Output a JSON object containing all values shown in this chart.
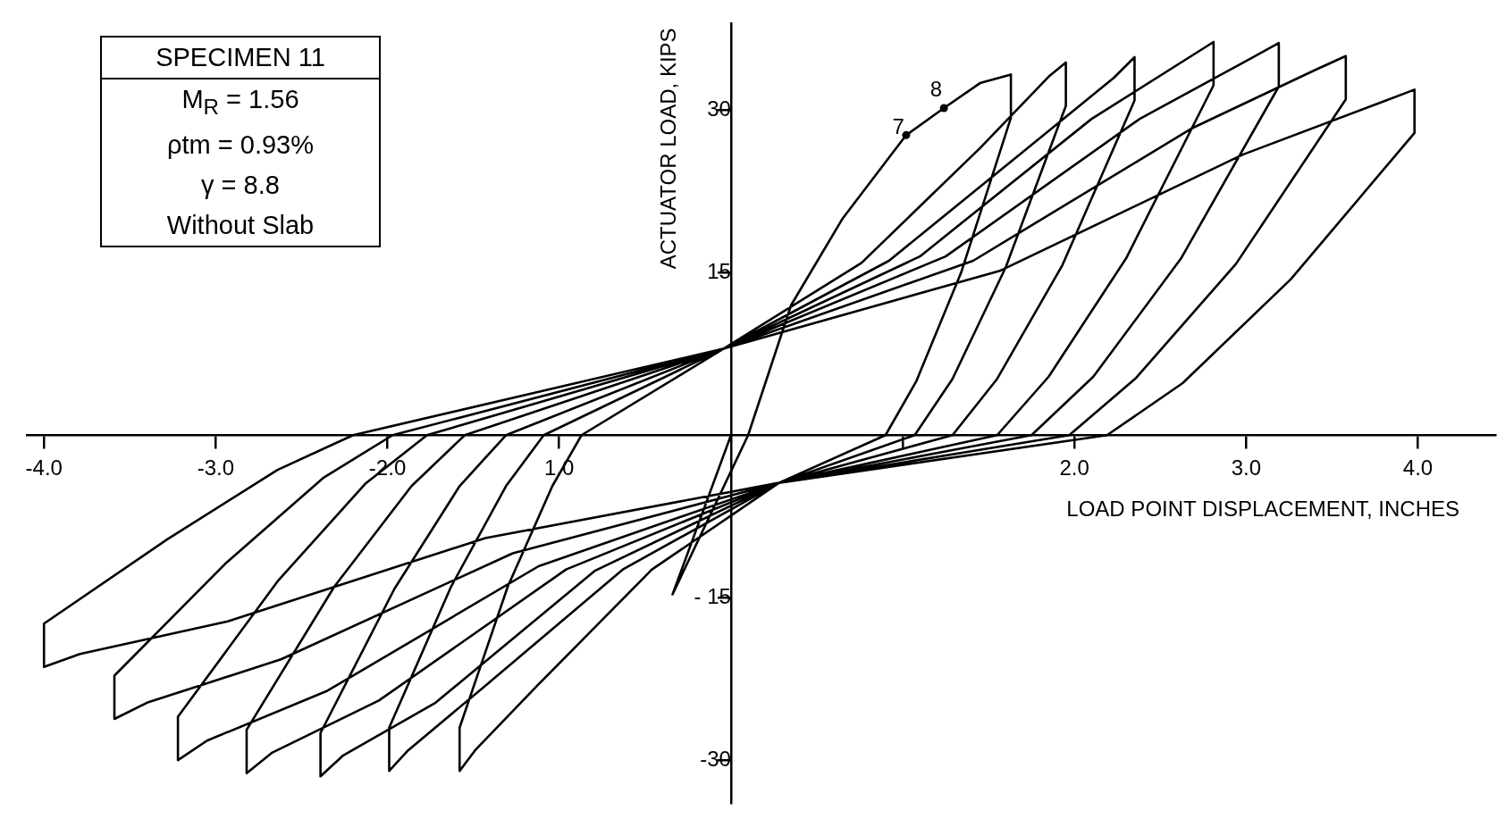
{
  "chart_data": {
    "type": "line",
    "xlabel": "LOAD POINT DISPLACEMENT, INCHES",
    "ylabel": "ACTUATOR LOAD, KIPS",
    "annotations": [
      "SPECIMEN 11",
      "M$_{R}$ = 1.56",
      "ρtm = 0.93%",
      "γ = 8.8",
      "Without Slab",
      {
        "text": "7",
        "x": 1.02,
        "y": 27.7
      },
      {
        "text": "8",
        "x": 1.24,
        "y": 30.2
      }
    ],
    "x": [
      0,
      -0.34,
      0.1,
      0.35,
      0.65,
      1.02,
      1.24,
      1.45,
      1.63,
      1.63,
      1.34,
      1.08,
      0.9,
      0.28,
      -0.46,
      -1.12,
      -1.49,
      -1.58,
      -1.58,
      -1.3,
      -1.04,
      -0.87,
      -0.04,
      0.76,
      1.45,
      1.85,
      1.95,
      1.95,
      1.6,
      1.29,
      1.07,
      0.28,
      -0.63,
      -1.42,
      -1.88,
      -1.99,
      -1.99,
      -1.63,
      -1.31,
      -1.09,
      -0.04,
      0.92,
      1.75,
      2.23,
      2.35,
      2.35,
      1.93,
      1.55,
      1.29,
      0.28,
      -0.79,
      -1.72,
      -2.26,
      -2.39,
      -2.39,
      -1.96,
      -1.58,
      -1.31,
      -0.04,
      1.1,
      2.1,
      2.67,
      2.81,
      2.81,
      2.3,
      1.85,
      1.55,
      0.28,
      -0.96,
      -2.05,
      -2.67,
      -2.82,
      -2.82,
      -2.31,
      -1.86,
      -1.55,
      -0.04,
      1.25,
      2.38,
      3.03,
      3.19,
      3.19,
      2.62,
      2.11,
      1.75,
      0.28,
      -1.12,
      -2.35,
      -3.05,
      -3.22,
      -3.22,
      -2.64,
      -2.13,
      -1.77,
      -0.04,
      1.41,
      2.68,
      3.4,
      3.58,
      3.58,
      2.94,
      2.36,
      1.97,
      0.28,
      -1.27,
      -2.62,
      -3.4,
      -3.59,
      -3.59,
      -2.94,
      -2.37,
      -1.97,
      -0.04,
      1.57,
      2.98,
      3.78,
      3.98,
      3.98,
      3.26,
      2.63,
      2.19,
      0.28,
      -1.43,
      -2.93,
      -3.79,
      -4.0,
      -4.0,
      -3.28,
      -2.64,
      -2.2,
      -0.04
    ],
    "series": [
      {
        "color": "#000000",
        "values": [
          0,
          -14.7,
          0,
          12,
          20,
          27.7,
          30.2,
          32.5,
          33.3,
          29.3,
          15.0,
          5.0,
          0,
          -4.4,
          -12.4,
          -23.0,
          -29.1,
          -31.0,
          -27.0,
          -14.0,
          -4.7,
          0,
          8,
          15.9,
          26.5,
          33.1,
          34.4,
          30.4,
          15.5,
          5.2,
          0,
          -4.4,
          -12.4,
          -23.0,
          -29.1,
          -31.0,
          -27.0,
          -14.0,
          -4.7,
          0,
          8,
          16.1,
          26.8,
          33.0,
          34.9,
          30.9,
          15.7,
          5.2,
          0,
          -4.4,
          -12.5,
          -24.7,
          -29.6,
          -31.5,
          -27.5,
          -14.2,
          -4.7,
          0,
          8,
          16.5,
          29.2,
          34.9,
          36.3,
          32.3,
          16.3,
          5.4,
          0,
          -4.4,
          -12.4,
          -24.5,
          -29.3,
          -31.2,
          -27.2,
          -14.0,
          -4.7,
          0,
          8,
          16.5,
          29.2,
          34.8,
          36.2,
          32.2,
          16.3,
          5.4,
          0,
          -4.4,
          -12.1,
          -23.6,
          -28.2,
          -30.0,
          -26.0,
          -13.5,
          -4.5,
          0,
          8,
          16.1,
          28.3,
          33.7,
          35.0,
          31.0,
          15.8,
          5.3,
          0,
          -4.4,
          -10.9,
          -20.7,
          -24.7,
          -26.2,
          -22.2,
          -11.8,
          -3.9,
          0,
          8,
          15.2,
          25.9,
          30.7,
          31.9,
          27.9,
          14.4,
          4.8,
          0,
          -4.4,
          -9.5,
          -17.2,
          -20.2,
          -21.4,
          -17.4,
          -9.6,
          -3.2,
          0,
          8
        ]
      }
    ],
    "xlim": [
      -4.1,
      4.45
    ],
    "ylim": [
      -34,
      38
    ],
    "xticks": [
      {
        "value": -4,
        "label": "-4.0"
      },
      {
        "value": -3,
        "label": "-3.0"
      },
      {
        "value": -2,
        "label": "-2.0"
      },
      {
        "value": -1,
        "label": "1.0"
      },
      {
        "value": 1,
        "label": null
      },
      {
        "value": 2,
        "label": "2.0"
      },
      {
        "value": 3,
        "label": "3.0"
      },
      {
        "value": 4,
        "label": "4.0"
      }
    ],
    "yticks": [
      30,
      15,
      {
        "value": -15,
        "label": "- 15"
      },
      -30
    ],
    "line_style": "solid"
  }
}
